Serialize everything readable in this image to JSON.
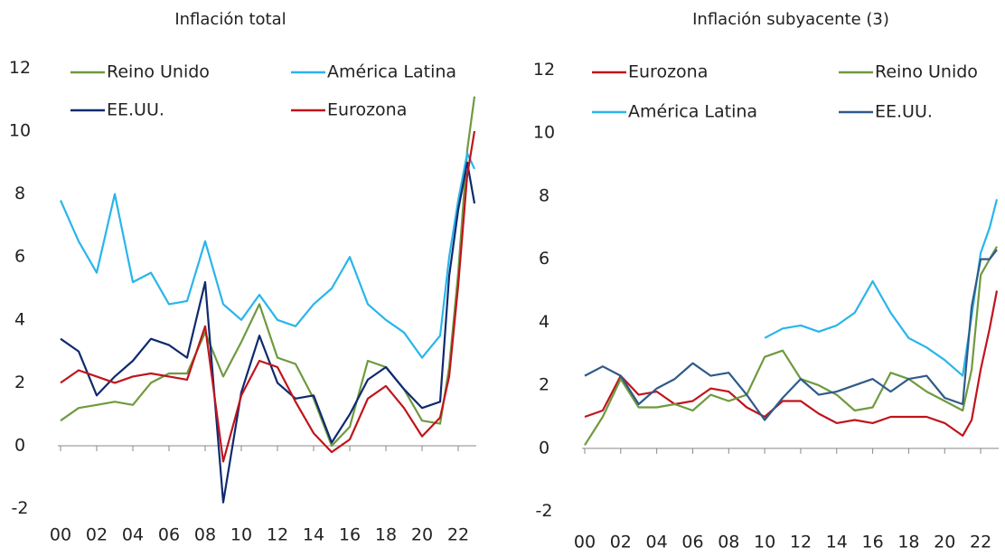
{
  "chart_data": [
    {
      "type": "line",
      "title": "Inflación total",
      "legend": "top",
      "x": [
        2000,
        2001,
        2002,
        2003,
        2004,
        2005,
        2006,
        2007,
        2008,
        2009,
        2010,
        2011,
        2012,
        2013,
        2014,
        2015,
        2016,
        2017,
        2018,
        2019,
        2020,
        2021,
        2021.5,
        2022,
        2022.5,
        2022.9
      ],
      "xlim": [
        2000,
        2023
      ],
      "xticks": [
        {
          "value": 2000,
          "label": "00"
        },
        {
          "value": 2002,
          "label": "02"
        },
        {
          "value": 2004,
          "label": "04"
        },
        {
          "value": 2006,
          "label": "06"
        },
        {
          "value": 2008,
          "label": "08"
        },
        {
          "value": 2010,
          "label": "10"
        },
        {
          "value": 2012,
          "label": "12"
        },
        {
          "value": 2014,
          "label": "14"
        },
        {
          "value": 2016,
          "label": "16"
        },
        {
          "value": 2018,
          "label": "18"
        },
        {
          "value": 2020,
          "label": "20"
        },
        {
          "value": 2022,
          "label": "22"
        }
      ],
      "ylim": [
        -2.5,
        12.5
      ],
      "yticks": [
        -2,
        0,
        2,
        4,
        6,
        8,
        10,
        12
      ],
      "series": [
        {
          "name": "Reino Unido",
          "color": "#6f9a3f",
          "values": [
            0.8,
            1.2,
            1.3,
            1.4,
            1.3,
            2.0,
            2.3,
            2.3,
            3.6,
            2.2,
            3.3,
            4.5,
            2.8,
            2.6,
            1.5,
            0.0,
            0.6,
            2.7,
            2.5,
            1.8,
            0.8,
            0.7,
            2.5,
            5.5,
            9.4,
            11.1
          ]
        },
        {
          "name": "América Latina",
          "color": "#29b5ea",
          "values": [
            7.8,
            6.5,
            5.5,
            8.0,
            5.2,
            5.5,
            4.5,
            4.6,
            6.5,
            4.5,
            4.0,
            4.8,
            4.0,
            3.8,
            4.5,
            5.0,
            6.0,
            4.5,
            4.0,
            3.6,
            2.8,
            3.5,
            6.0,
            7.8,
            9.3,
            8.8
          ]
        },
        {
          "name": "EE.UU.",
          "color": "#0e2a6e",
          "values": [
            3.4,
            3.0,
            1.6,
            2.2,
            2.7,
            3.4,
            3.2,
            2.8,
            5.2,
            -1.8,
            1.7,
            3.5,
            2.0,
            1.5,
            1.6,
            0.1,
            1.0,
            2.1,
            2.5,
            1.8,
            1.2,
            1.4,
            5.4,
            7.5,
            9.0,
            7.7
          ]
        },
        {
          "name": "Eurozona",
          "color": "#c0141c",
          "values": [
            2.0,
            2.4,
            2.2,
            2.0,
            2.2,
            2.3,
            2.2,
            2.1,
            3.8,
            -0.5,
            1.6,
            2.7,
            2.5,
            1.4,
            0.4,
            -0.2,
            0.2,
            1.5,
            1.9,
            1.2,
            0.3,
            0.9,
            2.2,
            5.1,
            8.6,
            10.0
          ]
        }
      ]
    },
    {
      "type": "line",
      "title": "Inflación subyacente (3)",
      "legend": "top",
      "x": [
        2000,
        2001,
        2002,
        2003,
        2004,
        2005,
        2006,
        2007,
        2008,
        2009,
        2010,
        2011,
        2012,
        2013,
        2014,
        2015,
        2016,
        2017,
        2018,
        2019,
        2020,
        2021,
        2021.5,
        2022,
        2022.5,
        2022.9
      ],
      "xlim": [
        2000,
        2023
      ],
      "xticks": [
        {
          "value": 2000,
          "label": "00"
        },
        {
          "value": 2002,
          "label": "02"
        },
        {
          "value": 2004,
          "label": "04"
        },
        {
          "value": 2006,
          "label": "06"
        },
        {
          "value": 2008,
          "label": "08"
        },
        {
          "value": 2010,
          "label": "10"
        },
        {
          "value": 2012,
          "label": "12"
        },
        {
          "value": 2014,
          "label": "14"
        },
        {
          "value": 2016,
          "label": "16"
        },
        {
          "value": 2018,
          "label": "18"
        },
        {
          "value": 2020,
          "label": "20"
        },
        {
          "value": 2022,
          "label": "22"
        }
      ],
      "ylim": [
        -2.5,
        12.5
      ],
      "yticks": [
        -2,
        0,
        2,
        4,
        6,
        8,
        10,
        12
      ],
      "series": [
        {
          "name": "Eurozona",
          "color": "#c0141c",
          "values": [
            1.0,
            1.2,
            2.3,
            1.7,
            1.8,
            1.4,
            1.5,
            1.9,
            1.8,
            1.3,
            1.0,
            1.5,
            1.5,
            1.1,
            0.8,
            0.9,
            0.8,
            1.0,
            1.0,
            1.0,
            0.8,
            0.4,
            0.9,
            2.5,
            3.8,
            5.0
          ]
        },
        {
          "name": "Reino Unido",
          "color": "#6f9a3f",
          "values": [
            0.1,
            1.0,
            2.2,
            1.3,
            1.3,
            1.4,
            1.2,
            1.7,
            1.5,
            1.7,
            2.9,
            3.1,
            2.2,
            2.0,
            1.7,
            1.2,
            1.3,
            2.4,
            2.2,
            1.8,
            1.5,
            1.2,
            2.5,
            5.5,
            6.0,
            6.4
          ]
        },
        {
          "name": "América Latina",
          "color": "#29b5ea",
          "values": [
            null,
            null,
            null,
            null,
            null,
            null,
            null,
            null,
            null,
            null,
            3.5,
            3.8,
            3.9,
            3.7,
            3.9,
            4.3,
            5.3,
            4.3,
            3.5,
            3.2,
            2.8,
            2.3,
            4.2,
            6.2,
            7.0,
            7.9
          ]
        },
        {
          "name": "EE.UU.",
          "color": "#2e5a8a",
          "values": [
            2.3,
            2.6,
            2.3,
            1.4,
            1.9,
            2.2,
            2.7,
            2.3,
            2.4,
            1.7,
            0.9,
            1.6,
            2.2,
            1.7,
            1.8,
            2.0,
            2.2,
            1.8,
            2.2,
            2.3,
            1.6,
            1.4,
            4.5,
            6.0,
            6.0,
            6.3
          ]
        }
      ]
    }
  ]
}
